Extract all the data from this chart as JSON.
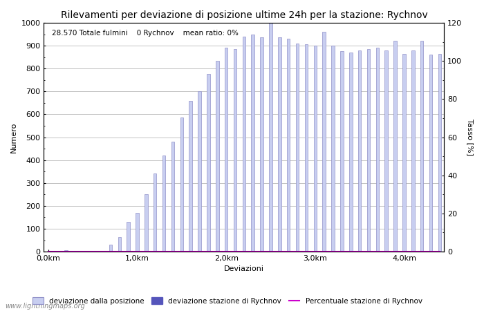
{
  "title": "Rilevamenti per deviazione di posizione ultime 24h per la stazione: Rychnov",
  "xlabel": "Deviazioni",
  "ylabel_left": "Numero",
  "ylabel_right": "Tasso [%]",
  "subtitle": "28.570 Totale fulmini    0 Rychnov    mean ratio: 0%",
  "watermark": "www.lightningmaps.org",
  "bar_color": "#c8cef0",
  "bar_edge_color": "#9090c8",
  "station_bar_color": "#5555bb",
  "line_color": "#cc00cc",
  "ylim_left": [
    0,
    1000
  ],
  "ylim_right": [
    0,
    120
  ],
  "yticks_left": [
    0,
    100,
    200,
    300,
    400,
    500,
    600,
    700,
    800,
    900,
    1000
  ],
  "yticks_right": [
    0,
    20,
    40,
    60,
    80,
    100,
    120
  ],
  "xtick_labels": [
    "0,0km",
    "1,0km",
    "2,0km",
    "3,0km",
    "4,0km"
  ],
  "xtick_positions": [
    0,
    10,
    20,
    30,
    40
  ],
  "bar_values": [
    0,
    0,
    5,
    0,
    0,
    2,
    0,
    30,
    65,
    130,
    170,
    250,
    340,
    420,
    480,
    585,
    660,
    700,
    775,
    835,
    890,
    885,
    940,
    950,
    935,
    1000,
    935,
    930,
    910,
    905,
    900,
    960,
    900,
    875,
    870,
    880,
    885,
    890,
    880,
    920,
    865,
    880,
    920,
    860,
    865
  ],
  "station_values": [
    0,
    0,
    0,
    0,
    0,
    0,
    0,
    0,
    0,
    0,
    0,
    0,
    0,
    0,
    0,
    0,
    0,
    0,
    0,
    0,
    0,
    0,
    0,
    0,
    0,
    0,
    0,
    0,
    0,
    0,
    0,
    0,
    0,
    0,
    0,
    0,
    0,
    0,
    0,
    0,
    0,
    0,
    0,
    0,
    0
  ],
  "ratio_values": [
    0,
    0,
    0,
    0,
    0,
    0,
    0,
    0,
    0,
    0,
    0,
    0,
    0,
    0,
    0,
    0,
    0,
    0,
    0,
    0,
    0,
    0,
    0,
    0,
    0,
    0,
    0,
    0,
    0,
    0,
    0,
    0,
    0,
    0,
    0,
    0,
    0,
    0,
    0,
    0,
    0,
    0,
    0,
    0,
    0
  ],
  "bg_color": "#ffffff",
  "grid_color": "#aaaaaa",
  "title_fontsize": 10,
  "label_fontsize": 8,
  "tick_fontsize": 8,
  "bar_width": 0.35
}
